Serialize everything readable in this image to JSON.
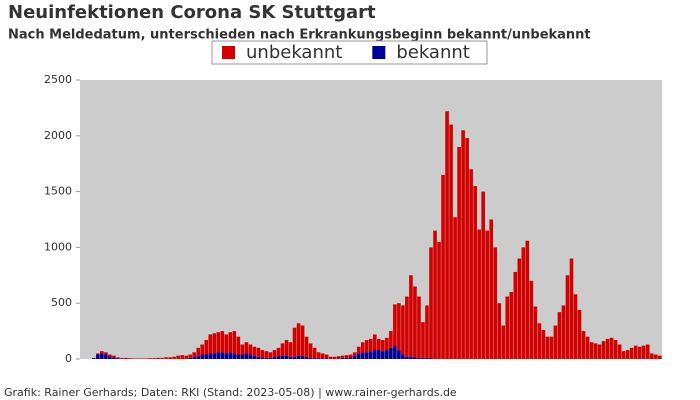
{
  "chart_data": {
    "type": "stacked-bar",
    "title": "Neuinfektionen Corona SK Stuttgart",
    "subtitle": "Nach Meldedatum, unterschieden nach Erkrankungsbeginn bekannt/unbekannt",
    "footer": "Grafik: Rainer Gerhards; Daten: RKI (Stand: 2023-05-08) | www.rainer-gerhards.de",
    "categories": [
      null,
      null,
      null,
      null,
      null,
      null,
      null,
      null,
      null,
      null,
      null,
      null,
      null,
      null,
      null,
      null,
      null,
      null,
      null,
      null,
      null,
      null,
      null,
      null,
      null,
      null,
      null,
      null,
      null,
      null,
      null,
      null,
      null,
      null,
      null,
      null,
      null,
      null,
      null,
      null,
      null,
      null,
      null,
      null,
      null,
      null,
      null,
      null,
      null,
      null,
      null,
      null,
      null,
      null,
      null,
      null,
      null,
      null,
      null,
      null,
      null,
      null,
      null,
      null,
      null,
      null,
      null,
      null,
      null,
      null,
      null,
      null,
      null,
      null,
      null,
      null,
      null,
      null,
      null,
      null,
      null,
      null,
      null,
      null,
      null,
      null,
      null,
      null,
      null,
      null,
      null,
      null,
      null,
      null,
      null,
      null,
      null,
      null,
      null,
      null,
      null,
      null,
      null,
      null,
      null,
      null,
      null,
      null,
      null,
      null,
      null,
      null,
      null,
      null,
      null,
      null,
      null,
      null,
      null,
      null,
      null,
      null,
      null,
      null,
      null,
      null,
      null,
      null,
      null,
      null,
      null,
      null,
      null,
      null,
      null,
      null,
      null,
      null,
      null,
      null,
      null,
      null,
      null,
      null,
      null
    ],
    "series": [
      {
        "name": "unbekannt",
        "color": "#d40000",
        "values": [
          0,
          0,
          0,
          2,
          10,
          20,
          20,
          15,
          15,
          10,
          7,
          10,
          8,
          5,
          5,
          5,
          5,
          8,
          8,
          10,
          10,
          15,
          15,
          20,
          30,
          35,
          30,
          30,
          40,
          70,
          90,
          130,
          170,
          180,
          180,
          190,
          170,
          180,
          200,
          160,
          90,
          100,
          90,
          80,
          80,
          65,
          60,
          50,
          60,
          70,
          110,
          140,
          130,
          260,
          290,
          270,
          180,
          130,
          90,
          55,
          45,
          35,
          20,
          20,
          25,
          20,
          25,
          25,
          30,
          60,
          90,
          110,
          110,
          140,
          100,
          100,
          110,
          150,
          370,
          420,
          440,
          540,
          730,
          630,
          550,
          320,
          470,
          990,
          1150,
          1050,
          1650,
          2220,
          2100,
          1270,
          1900,
          2050,
          1980,
          1700,
          1550,
          1160,
          1500,
          1150,
          1250,
          1000,
          500,
          300,
          560,
          600,
          780,
          900,
          1000,
          1060,
          700,
          470,
          320,
          260,
          200,
          200,
          300,
          420,
          480,
          750,
          900,
          580,
          440,
          250,
          200,
          150,
          140,
          130,
          160,
          180,
          190,
          170,
          130,
          70,
          80,
          100,
          120,
          110,
          120,
          130,
          50,
          40,
          30
        ]
      },
      {
        "name": "bekannt",
        "color": "#000099",
        "values": [
          0,
          0,
          0,
          8,
          40,
          50,
          40,
          25,
          15,
          5,
          3,
          0,
          0,
          0,
          0,
          0,
          0,
          0,
          0,
          0,
          0,
          0,
          0,
          0,
          0,
          0,
          0,
          10,
          20,
          30,
          40,
          40,
          50,
          50,
          60,
          60,
          50,
          60,
          50,
          40,
          40,
          50,
          40,
          30,
          20,
          15,
          10,
          10,
          20,
          30,
          30,
          30,
          20,
          20,
          30,
          30,
          20,
          10,
          10,
          5,
          5,
          5,
          0,
          0,
          0,
          10,
          10,
          15,
          30,
          50,
          60,
          60,
          70,
          80,
          80,
          70,
          80,
          100,
          120,
          80,
          40,
          20,
          20,
          20,
          10,
          10,
          10,
          10,
          0,
          0,
          0,
          0,
          0,
          0,
          0,
          0,
          0,
          0,
          0,
          0,
          0,
          0,
          0,
          0,
          0,
          0,
          0,
          0,
          0,
          0,
          0,
          0,
          0,
          0,
          0,
          0,
          0,
          0,
          0,
          0,
          0,
          0,
          0,
          0,
          0,
          0,
          0,
          0,
          0,
          0,
          0,
          0,
          0,
          0,
          0,
          0,
          0,
          0,
          0,
          0,
          0,
          0,
          0,
          0,
          0
        ]
      }
    ],
    "ylim": [
      0,
      2500
    ],
    "yticks": [
      0,
      500,
      1000,
      1500,
      2000,
      2500
    ],
    "grid": false
  }
}
